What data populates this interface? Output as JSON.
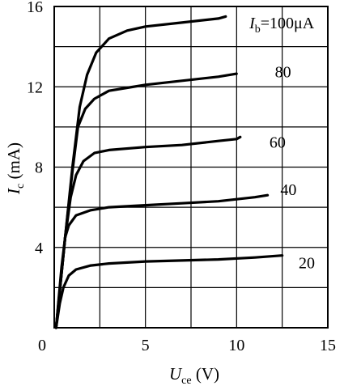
{
  "chart_data": {
    "type": "line",
    "title": "",
    "xlabel": {
      "main": "U",
      "sub": "ce",
      "unit": " (V)"
    },
    "ylabel": {
      "main": "I",
      "sub": "c",
      "unit": " (mA)"
    },
    "xlim": [
      0,
      15
    ],
    "ylim": [
      0,
      16
    ],
    "x_ticks": [
      0,
      5,
      10,
      15
    ],
    "y_ticks": [
      0,
      4,
      8,
      12,
      16
    ],
    "grid": true,
    "grid_x_step": 2.5,
    "grid_y_step": 2,
    "series": [
      {
        "name": "20",
        "x": [
          0.1,
          0.3,
          0.5,
          0.8,
          1.2,
          2.0,
          3.0,
          5.0,
          7.0,
          9.0,
          11.0,
          12.5
        ],
        "y": [
          0.0,
          1.2,
          2.0,
          2.6,
          2.9,
          3.1,
          3.2,
          3.3,
          3.35,
          3.4,
          3.5,
          3.6
        ]
      },
      {
        "name": "40",
        "x": [
          0.1,
          0.4,
          0.6,
          0.8,
          1.2,
          2.0,
          3.0,
          5.0,
          7.0,
          9.0,
          11.0,
          11.7
        ],
        "y": [
          0.0,
          3.0,
          4.5,
          5.1,
          5.6,
          5.85,
          6.0,
          6.1,
          6.2,
          6.3,
          6.5,
          6.6
        ]
      },
      {
        "name": "60",
        "x": [
          0.1,
          0.6,
          0.9,
          1.2,
          1.6,
          2.2,
          3.0,
          5.0,
          7.0,
          9.0,
          10.0,
          10.2
        ],
        "y": [
          0.0,
          4.5,
          6.5,
          7.6,
          8.3,
          8.7,
          8.85,
          9.0,
          9.1,
          9.3,
          9.4,
          9.5
        ]
      },
      {
        "name": "80",
        "x": [
          0.1,
          0.6,
          1.0,
          1.3,
          1.7,
          2.2,
          3.0,
          4.0,
          5.0,
          7.0,
          9.0,
          10.0
        ],
        "y": [
          0.0,
          4.5,
          7.8,
          10.0,
          10.9,
          11.4,
          11.8,
          11.95,
          12.1,
          12.3,
          12.5,
          12.65
        ]
      },
      {
        "name": "100",
        "x": [
          0.1,
          0.6,
          1.0,
          1.4,
          1.8,
          2.3,
          3.0,
          4.0,
          5.0,
          7.0,
          9.0,
          9.4
        ],
        "y": [
          0.0,
          4.5,
          8.0,
          11.0,
          12.6,
          13.7,
          14.4,
          14.8,
          15.0,
          15.2,
          15.4,
          15.5
        ]
      }
    ],
    "curve_labels": [
      {
        "series": "100",
        "prefix_main": "I",
        "prefix_sub": "b",
        "text": "=100μA",
        "x": 10.7,
        "y": 15.2
      },
      {
        "series": "80",
        "text": "80",
        "x": 12.1,
        "y": 12.75
      },
      {
        "series": "60",
        "text": "60",
        "x": 11.8,
        "y": 9.25
      },
      {
        "series": "40",
        "text": "40",
        "x": 12.4,
        "y": 6.9
      },
      {
        "series": "20",
        "text": "20",
        "x": 13.4,
        "y": 3.25
      }
    ]
  }
}
